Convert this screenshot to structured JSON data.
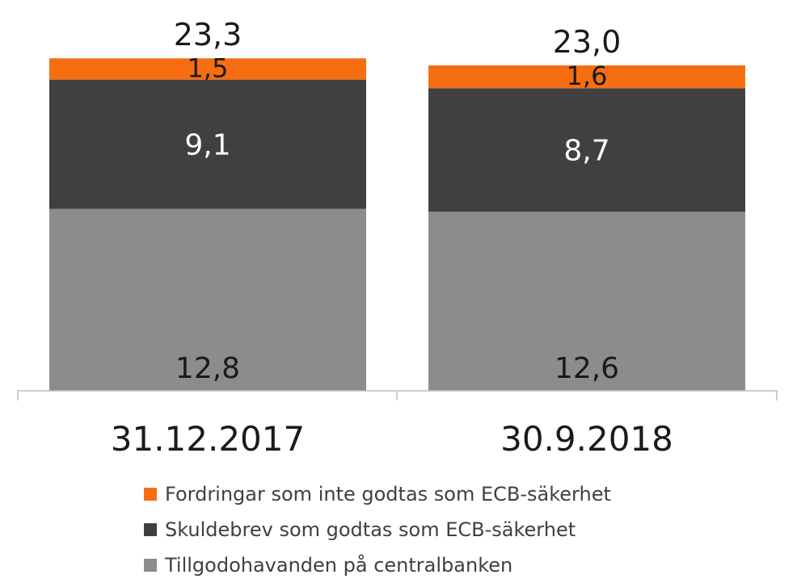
{
  "chart_data": {
    "type": "bar",
    "stacked": true,
    "categories": [
      "31.12.2017",
      "30.9.2018"
    ],
    "series": [
      {
        "name": "Tillgodohavanden på centralbanken",
        "values": [
          12.8,
          12.6
        ],
        "labels": [
          "12,8",
          "12,6"
        ],
        "color": "#8c8c8c",
        "label_color": "#1a1a1a"
      },
      {
        "name": "Skuldebrev som godtas som ECB-säkerhet",
        "values": [
          9.1,
          8.7
        ],
        "labels": [
          "9,1",
          "8,7"
        ],
        "color": "#404040",
        "label_color": "#ffffff"
      },
      {
        "name": "Fordringar som inte godtas som ECB-säkerhet",
        "values": [
          1.5,
          1.6
        ],
        "labels": [
          "1,5",
          "1,6"
        ],
        "color": "#f76d12",
        "label_color": "#1a1a1a"
      }
    ],
    "totals": [
      23.3,
      23.0
    ],
    "total_labels": [
      "23,3",
      "23,0"
    ],
    "ylim": [
      0,
      23.3
    ],
    "title": "",
    "xlabel": "",
    "ylabel": "",
    "legend_position": "bottom",
    "legend_order": [
      2,
      1,
      0
    ]
  }
}
